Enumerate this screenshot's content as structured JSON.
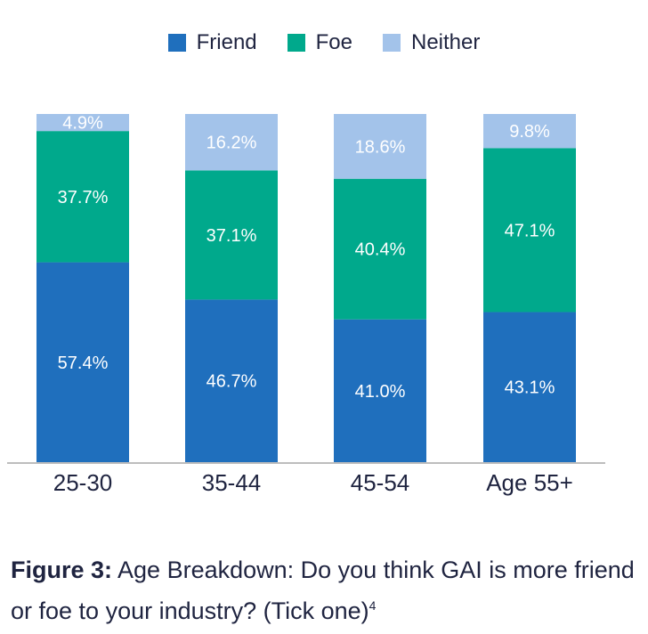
{
  "chart_data": {
    "type": "bar",
    "stacked": true,
    "categories": [
      "25-30",
      "35-44",
      "45-54",
      "Age 55+"
    ],
    "series": [
      {
        "name": "Friend",
        "color": "#1f6fbd",
        "values": [
          57.4,
          46.7,
          41.0,
          43.1
        ],
        "labels": [
          "57.4%",
          "46.7%",
          "41.0%",
          "43.1%"
        ]
      },
      {
        "name": "Foe",
        "color": "#00a98c",
        "values": [
          37.7,
          37.1,
          40.4,
          47.1
        ],
        "labels": [
          "37.7%",
          "37.1%",
          "40.4%",
          "47.1%"
        ]
      },
      {
        "name": "Neither",
        "color": "#a3c3ea",
        "values": [
          4.9,
          16.2,
          18.6,
          9.8
        ],
        "labels": [
          "4.9%",
          "16.2%",
          "18.6%",
          "9.8%"
        ]
      }
    ],
    "ylim": [
      0,
      100
    ],
    "legend_position": "top-center",
    "grid": false
  },
  "caption": {
    "figure_label": "Figure 3:",
    "text": "Age Breakdown: Do you think GAI is more friend or foe to your industry? (Tick one)",
    "footnote": "4"
  }
}
